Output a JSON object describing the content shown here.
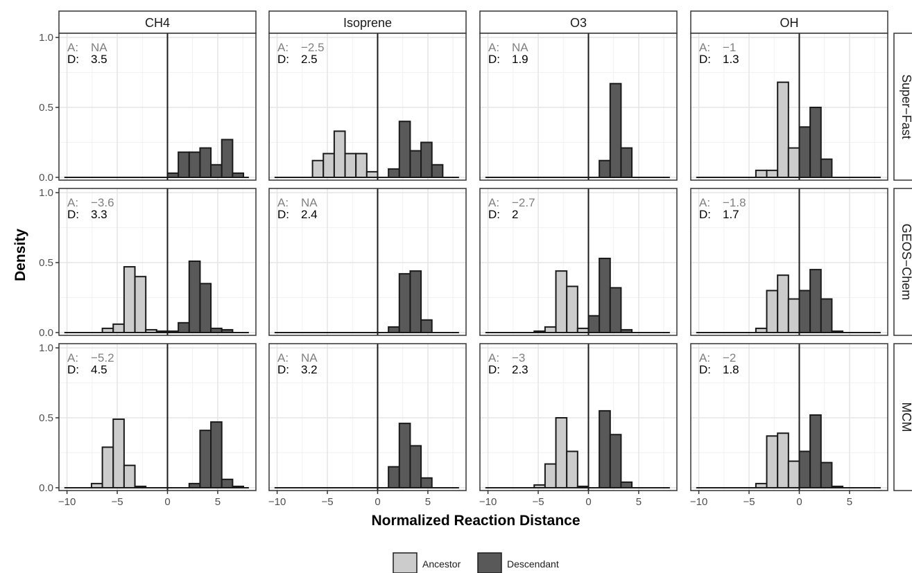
{
  "chart_data": {
    "type": "histogram-facet",
    "xlabel": "Normalized Reaction Distance",
    "ylabel": "Density",
    "xlim": [
      -10.8,
      8.8
    ],
    "ylim": [
      -0.02,
      1.03
    ],
    "x_ticks": [
      -10,
      -5,
      0,
      5
    ],
    "x_tick_labels": [
      "−10",
      "−5",
      "0",
      "5"
    ],
    "y_ticks": [
      0,
      0.5,
      1.0
    ],
    "y_tick_labels": [
      "0.0",
      "0.5",
      "1.0"
    ],
    "bin_width": 1.08,
    "columns": [
      "CH4",
      "Isoprene",
      "O3",
      "OH"
    ],
    "rows": [
      "Super−Fast",
      "GEOS−Chem",
      "MCM"
    ],
    "reference_line_x": 0,
    "grid": true,
    "legend": {
      "placement": "bottom",
      "entries": [
        {
          "name": "Ancestor",
          "color": "#cccccc"
        },
        {
          "name": "Descendant",
          "color": "#595959"
        }
      ]
    },
    "panels": [
      {
        "column": "CH4",
        "row": "Super−Fast",
        "A_label": "A:",
        "A_value": "NA",
        "D_label": "D:",
        "D_value": "3.5",
        "ancestor": [],
        "descendant": [
          {
            "x": 0.54,
            "y": 0.03
          },
          {
            "x": 1.62,
            "y": 0.18
          },
          {
            "x": 2.7,
            "y": 0.18
          },
          {
            "x": 3.78,
            "y": 0.21
          },
          {
            "x": 4.86,
            "y": 0.09
          },
          {
            "x": 5.94,
            "y": 0.27
          },
          {
            "x": 7.02,
            "y": 0.03
          }
        ]
      },
      {
        "column": "Isoprene",
        "row": "Super−Fast",
        "A_label": "A:",
        "A_value": "−2.5",
        "D_label": "D:",
        "D_value": "2.5",
        "ancestor": [
          {
            "x": -5.94,
            "y": 0.12
          },
          {
            "x": -4.86,
            "y": 0.17
          },
          {
            "x": -3.78,
            "y": 0.33
          },
          {
            "x": -2.7,
            "y": 0.17
          },
          {
            "x": -1.62,
            "y": 0.17
          },
          {
            "x": -0.54,
            "y": 0.04
          }
        ],
        "descendant": [
          {
            "x": 1.62,
            "y": 0.06
          },
          {
            "x": 2.7,
            "y": 0.4
          },
          {
            "x": 3.78,
            "y": 0.19
          },
          {
            "x": 4.86,
            "y": 0.25
          },
          {
            "x": 5.94,
            "y": 0.09
          }
        ]
      },
      {
        "column": "O3",
        "row": "Super−Fast",
        "A_label": "A:",
        "A_value": "NA",
        "D_label": "D:",
        "D_value": "1.9",
        "ancestor": [],
        "descendant": [
          {
            "x": 1.62,
            "y": 0.12
          },
          {
            "x": 2.7,
            "y": 0.67
          },
          {
            "x": 3.78,
            "y": 0.21
          }
        ]
      },
      {
        "column": "OH",
        "row": "Super−Fast",
        "A_label": "A:",
        "A_value": "−1",
        "D_label": "D:",
        "D_value": "1.3",
        "ancestor": [
          {
            "x": -3.78,
            "y": 0.05
          },
          {
            "x": -2.7,
            "y": 0.05
          },
          {
            "x": -1.62,
            "y": 0.68
          },
          {
            "x": -0.54,
            "y": 0.21
          }
        ],
        "descendant": [
          {
            "x": 0.54,
            "y": 0.36
          },
          {
            "x": 1.62,
            "y": 0.5
          },
          {
            "x": 2.7,
            "y": 0.13
          }
        ]
      },
      {
        "column": "CH4",
        "row": "GEOS−Chem",
        "A_label": "A:",
        "A_value": "−3.6",
        "D_label": "D:",
        "D_value": "3.3",
        "ancestor": [
          {
            "x": -5.94,
            "y": 0.03
          },
          {
            "x": -4.86,
            "y": 0.06
          },
          {
            "x": -3.78,
            "y": 0.47
          },
          {
            "x": -2.7,
            "y": 0.4
          },
          {
            "x": -1.62,
            "y": 0.02
          },
          {
            "x": -0.54,
            "y": 0.01
          }
        ],
        "descendant": [
          {
            "x": 0.54,
            "y": 0.01
          },
          {
            "x": 1.62,
            "y": 0.07
          },
          {
            "x": 2.7,
            "y": 0.51
          },
          {
            "x": 3.78,
            "y": 0.35
          },
          {
            "x": 4.86,
            "y": 0.03
          },
          {
            "x": 5.94,
            "y": 0.02
          }
        ]
      },
      {
        "column": "Isoprene",
        "row": "GEOS−Chem",
        "A_label": "A:",
        "A_value": "NA",
        "D_label": "D:",
        "D_value": "2.4",
        "ancestor": [],
        "descendant": [
          {
            "x": 1.62,
            "y": 0.04
          },
          {
            "x": 2.7,
            "y": 0.42
          },
          {
            "x": 3.78,
            "y": 0.44
          },
          {
            "x": 4.86,
            "y": 0.09
          }
        ]
      },
      {
        "column": "O3",
        "row": "GEOS−Chem",
        "A_label": "A:",
        "A_value": "−2.7",
        "D_label": "D:",
        "D_value": "2",
        "ancestor": [
          {
            "x": -4.86,
            "y": 0.01
          },
          {
            "x": -3.78,
            "y": 0.04
          },
          {
            "x": -2.7,
            "y": 0.44
          },
          {
            "x": -1.62,
            "y": 0.33
          },
          {
            "x": -0.54,
            "y": 0.03
          }
        ],
        "descendant": [
          {
            "x": 0.54,
            "y": 0.12
          },
          {
            "x": 1.62,
            "y": 0.53
          },
          {
            "x": 2.7,
            "y": 0.32
          },
          {
            "x": 3.78,
            "y": 0.02
          }
        ]
      },
      {
        "column": "OH",
        "row": "GEOS−Chem",
        "A_label": "A:",
        "A_value": "−1.8",
        "D_label": "D:",
        "D_value": "1.7",
        "ancestor": [
          {
            "x": -3.78,
            "y": 0.03
          },
          {
            "x": -2.7,
            "y": 0.3
          },
          {
            "x": -1.62,
            "y": 0.41
          },
          {
            "x": -0.54,
            "y": 0.24
          }
        ],
        "descendant": [
          {
            "x": 0.54,
            "y": 0.3
          },
          {
            "x": 1.62,
            "y": 0.45
          },
          {
            "x": 2.7,
            "y": 0.24
          },
          {
            "x": 3.78,
            "y": 0.01
          }
        ]
      },
      {
        "column": "CH4",
        "row": "MCM",
        "A_label": "A:",
        "A_value": "−5.2",
        "D_label": "D:",
        "D_value": "4.5",
        "ancestor": [
          {
            "x": -7.02,
            "y": 0.03
          },
          {
            "x": -5.94,
            "y": 0.29
          },
          {
            "x": -4.86,
            "y": 0.49
          },
          {
            "x": -3.78,
            "y": 0.16
          },
          {
            "x": -2.7,
            "y": 0.01
          }
        ],
        "descendant": [
          {
            "x": 2.7,
            "y": 0.03
          },
          {
            "x": 3.78,
            "y": 0.41
          },
          {
            "x": 4.86,
            "y": 0.47
          },
          {
            "x": 5.94,
            "y": 0.06
          },
          {
            "x": 7.02,
            "y": 0.01
          }
        ]
      },
      {
        "column": "Isoprene",
        "row": "MCM",
        "A_label": "A:",
        "A_value": "NA",
        "D_label": "D:",
        "D_value": "3.2",
        "ancestor": [],
        "descendant": [
          {
            "x": 1.62,
            "y": 0.15
          },
          {
            "x": 2.7,
            "y": 0.46
          },
          {
            "x": 3.78,
            "y": 0.3
          },
          {
            "x": 4.86,
            "y": 0.07
          }
        ]
      },
      {
        "column": "O3",
        "row": "MCM",
        "A_label": "A:",
        "A_value": "−3",
        "D_label": "D:",
        "D_value": "2.3",
        "ancestor": [
          {
            "x": -4.86,
            "y": 0.02
          },
          {
            "x": -3.78,
            "y": 0.17
          },
          {
            "x": -2.7,
            "y": 0.5
          },
          {
            "x": -1.62,
            "y": 0.26
          },
          {
            "x": -0.54,
            "y": 0.01
          }
        ],
        "descendant": [
          {
            "x": 1.62,
            "y": 0.55
          },
          {
            "x": 2.7,
            "y": 0.38
          },
          {
            "x": 3.78,
            "y": 0.04
          }
        ]
      },
      {
        "column": "OH",
        "row": "MCM",
        "A_label": "A:",
        "A_value": "−2",
        "D_label": "D:",
        "D_value": "1.8",
        "ancestor": [
          {
            "x": -3.78,
            "y": 0.03
          },
          {
            "x": -2.7,
            "y": 0.37
          },
          {
            "x": -1.62,
            "y": 0.39
          },
          {
            "x": -0.54,
            "y": 0.19
          }
        ],
        "descendant": [
          {
            "x": 0.54,
            "y": 0.26
          },
          {
            "x": 1.62,
            "y": 0.52
          },
          {
            "x": 2.7,
            "y": 0.18
          },
          {
            "x": 3.78,
            "y": 0.01
          }
        ]
      }
    ]
  }
}
